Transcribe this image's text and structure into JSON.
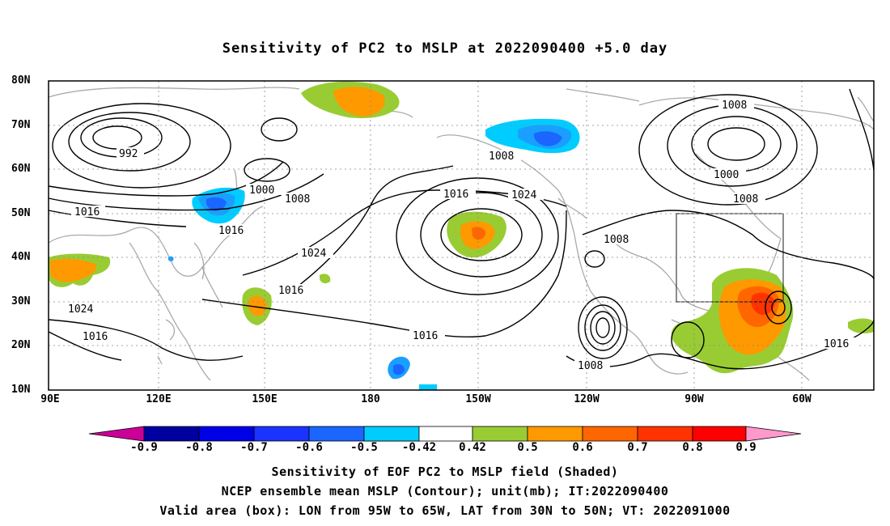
{
  "title": "Sensitivity of PC2 to MSLP at 2022090400 +5.0 day",
  "lat_labels": [
    "80N",
    "70N",
    "60N",
    "50N",
    "40N",
    "30N",
    "20N",
    "10N"
  ],
  "lon_labels": [
    "90E",
    "120E",
    "150E",
    "180",
    "150W",
    "120W",
    "90W",
    "60W"
  ],
  "contour_labels": [
    "992",
    "1016",
    "1000",
    "1008",
    "1016",
    "1024",
    "1016",
    "1024",
    "1016",
    "1008",
    "1016",
    "1024",
    "1016",
    "1008",
    "1008",
    "1000",
    "1008",
    "1008",
    "1016"
  ],
  "colorbar": {
    "labels": [
      "-0.9",
      "-0.8",
      "-0.7",
      "-0.6",
      "-0.5",
      "-0.42",
      "0.42",
      "0.5",
      "0.6",
      "0.7",
      "0.8",
      "0.9"
    ],
    "colors": [
      "#cc0099",
      "#0000a0",
      "#0000e6",
      "#1a33ff",
      "#1a66ff",
      "#1a9fff",
      "#00ccff",
      "#ffffff",
      "#99cc33",
      "#ff9900",
      "#ff6600",
      "#ff3300",
      "#ff0000",
      "#ff99cc"
    ]
  },
  "captions": [
    "Sensitivity of EOF PC2 to MSLP field (Shaded)",
    "NCEP ensemble mean MSLP (Contour); unit(mb); IT:2022090400",
    "Valid area (box): LON from 95W to 65W, LAT from 30N to 50N; VT: 2022091000"
  ]
}
